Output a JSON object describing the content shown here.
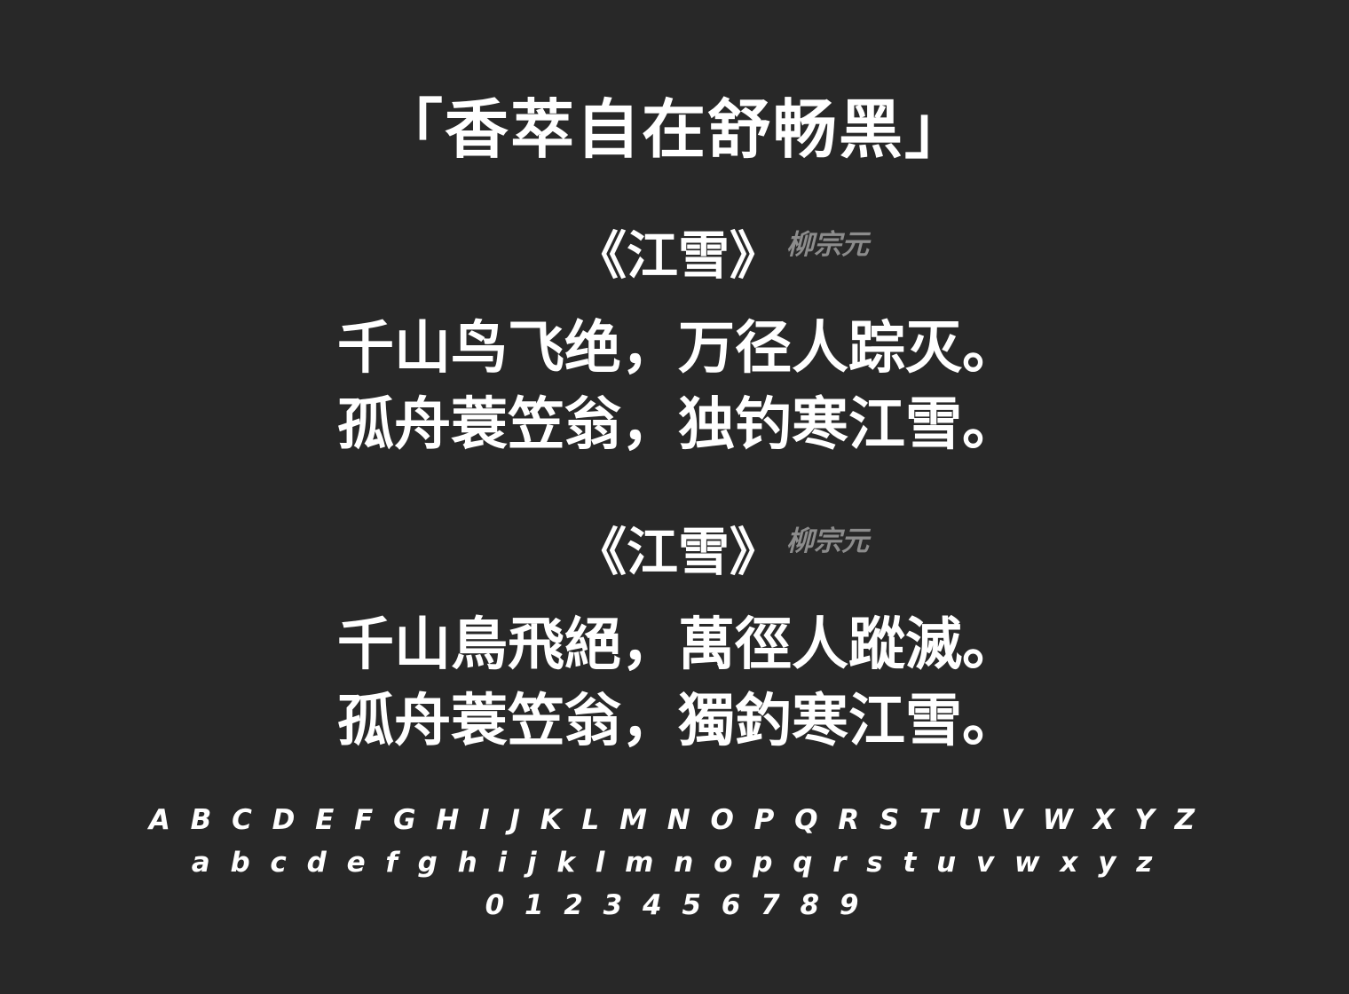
{
  "title": "「香萃自在舒畅黑」",
  "poems": [
    {
      "title": "《江雪》",
      "author": "柳宗元",
      "lines": [
        "千山鸟飞绝，万径人踪灭。",
        "孤舟蓑笠翁，独钓寒江雪。"
      ]
    },
    {
      "title": "《江雪》",
      "author": "柳宗元",
      "lines": [
        "千山鳥飛絕，萬徑人蹤滅。",
        "孤舟蓑笠翁，獨釣寒江雪。"
      ]
    }
  ],
  "alphabet": {
    "uppercase": "A B C D E F G H I J K L M N O P Q R S T U V W X Y Z",
    "lowercase": "a b c d e f g h i j k l m n o p q r s t u v w x y z",
    "digits": "0 1 2 3 4 5 6 7 8 9"
  },
  "colors": {
    "background": "#282828",
    "text": "#ffffff",
    "author": "#8c8c8c"
  }
}
